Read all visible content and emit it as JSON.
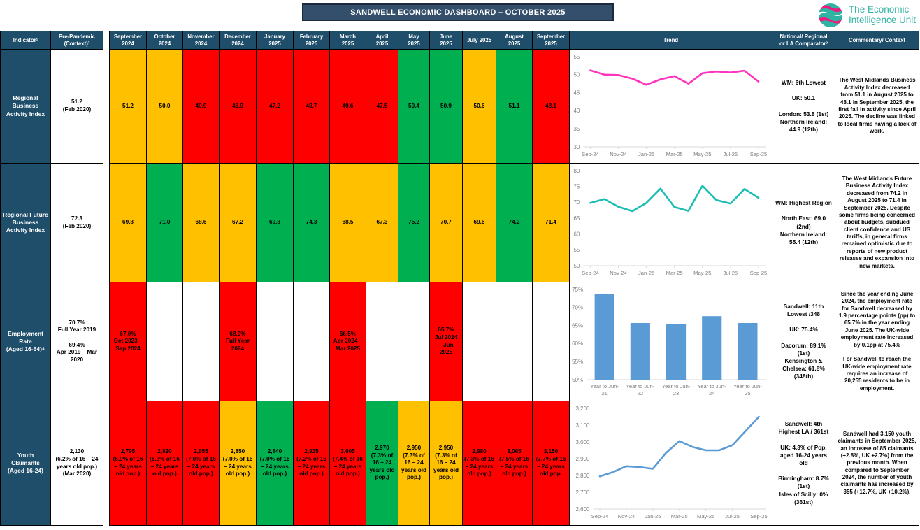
{
  "title": "SANDWELL ECONOMIC DASHBOARD – OCTOBER 2025",
  "logo": {
    "text": "The Economic\nIntelligence Unit"
  },
  "colors": {
    "header_bg": "#1F4E6B",
    "title_bg": "#334F6B",
    "red": "#FF0000",
    "amber": "#FFC000",
    "green": "#00B050",
    "none": "#FFFFFF",
    "line_pink": "#FF33BE",
    "line_teal": "#1CBEB4",
    "line_blue": "#5B9BD5",
    "bar_blue": "#5B9BD5",
    "axis_text": "#7F7F7F",
    "axis_line": "#D9D9D9",
    "logo_teal": "#2FB3A3",
    "logo_pink": "#ED1A7F"
  },
  "columns": {
    "indicator": "Indicator¹",
    "pre_pandemic": "Pre-Pandemic\n(Context)²",
    "months": [
      "September\n2024",
      "October\n2024",
      "November\n2024",
      "December\n2024",
      "January\n2025",
      "February\n2025",
      "March\n2025",
      "April\n2025",
      "May\n2025",
      "June\n2025",
      "July 2025",
      "August\n2025",
      "September\n2025"
    ],
    "trend": "Trend",
    "comparator": "National/ Regional\nor LA Comparator³",
    "commentary": "Commentary/ Context"
  },
  "rows": [
    {
      "indicator": "Regional\nBusiness\nActivity Index",
      "pre_pandemic": "51.2\n(Feb 2020)",
      "values": [
        {
          "text": "51.2",
          "status": "amber"
        },
        {
          "text": "50.0",
          "status": "amber"
        },
        {
          "text": "49.9",
          "status": "red"
        },
        {
          "text": "48.9",
          "status": "red"
        },
        {
          "text": "47.2",
          "status": "red"
        },
        {
          "text": "48.7",
          "status": "red"
        },
        {
          "text": "49.6",
          "status": "red"
        },
        {
          "text": "47.5",
          "status": "red"
        },
        {
          "text": "50.4",
          "status": "green"
        },
        {
          "text": "50.9",
          "status": "green"
        },
        {
          "text": "50.6",
          "status": "amber"
        },
        {
          "text": "51.1",
          "status": "green"
        },
        {
          "text": "48.1",
          "status": "red"
        }
      ],
      "comparator": "WM: 6th Lowest\n\nUK: 50.1\n\nLondon: 53.8 (1st)\nNorthern Ireland: 44.9 (12th)",
      "commentary": "The West Midlands Business Activity Index decreased from 51.1 in August 2025 to 48.1 in September 2025, the first fall in activity since April 2025. The decline was linked to local firms having a lack of work."
    },
    {
      "indicator": "Regional Future\nBusiness\nActivity Index",
      "pre_pandemic": "72.3\n(Feb 2020)",
      "values": [
        {
          "text": "69.8",
          "status": "amber"
        },
        {
          "text": "71.0",
          "status": "green"
        },
        {
          "text": "68.6",
          "status": "amber"
        },
        {
          "text": "67.2",
          "status": "amber"
        },
        {
          "text": "69.8",
          "status": "green"
        },
        {
          "text": "74.3",
          "status": "green"
        },
        {
          "text": "68.5",
          "status": "amber"
        },
        {
          "text": "67.3",
          "status": "amber"
        },
        {
          "text": "75.2",
          "status": "green"
        },
        {
          "text": "70.7",
          "status": "amber"
        },
        {
          "text": "69.6",
          "status": "amber"
        },
        {
          "text": "74.2",
          "status": "green"
        },
        {
          "text": "71.4",
          "status": "amber"
        }
      ],
      "comparator": "WM: Highest Region\n\nNorth East: 69.0 (2nd)\nNorthern Ireland: 55.4 (12th)",
      "commentary": "The West Midlands Future Business Activity Index decreased from 74.2 in August 2025 to 71.4 in September 2025. Despite some firms being concerned about budgets, subdued client confidence and US tariffs, in general firms remained optimistic due to reports of new product releases and expansion into new markets."
    },
    {
      "indicator": "Employment\nRate\n(Aged 16-64)⁴",
      "pre_pandemic": "70.7%\nFull Year 2019\n\n69.4%\nApr 2019 – Mar 2020",
      "values": [
        {
          "text": "67.0%\nOct 2023 –\nSep 2024",
          "status": "red"
        },
        {
          "text": "",
          "status": "none"
        },
        {
          "text": "",
          "status": "none"
        },
        {
          "text": "68.0%\nFull Year\n2024",
          "status": "red"
        },
        {
          "text": "",
          "status": "none"
        },
        {
          "text": "",
          "status": "none"
        },
        {
          "text": "66.5%\nApr 2024 –\nMar 2025",
          "status": "red"
        },
        {
          "text": "",
          "status": "none"
        },
        {
          "text": "",
          "status": "none"
        },
        {
          "text": "65.7%\nJul 2024\n– Jun\n2025",
          "status": "red"
        },
        {
          "text": "",
          "status": "none"
        },
        {
          "text": "",
          "status": "none"
        },
        {
          "text": "",
          "status": "none"
        }
      ],
      "comparator": "Sandwell: 11th\nLowest /348\n\nUK: 75.4%\n\nDacorum: 89.1%\n(1st)\nKensington &\nChelsea: 61.8%\n(348th)",
      "commentary": "Since the year ending June 2024, the employment rate for Sandwell decreased by 1.9 percentage points (pp) to 65.7% in the year ending June 2025. The UK-wide employment rate increased by 0.1pp at 75.4%\n\nFor Sandwell to reach the UK-wide employment rate requires an increase of 20,255 residents to be in employment."
    },
    {
      "indicator": "Youth\nClaimants\n(Aged 16-24)",
      "pre_pandemic": "2,130\n(6.2% of 16 – 24 years old pop.)\n(Mar 2020)",
      "values": [
        {
          "text": "2,795\n(6.9% of 16 – 24 years old pop.)",
          "status": "red"
        },
        {
          "text": "2,820\n(6.9% of 16 – 24 years old pop.)",
          "status": "red"
        },
        {
          "text": "2,855\n(7.0% of 16 – 24 years old pop.)",
          "status": "red"
        },
        {
          "text": "2,850\n(7.0% of 16 – 24 years old pop.)",
          "status": "amber"
        },
        {
          "text": "2,840\n(7.0% of 16 – 24 years old pop.)",
          "status": "green"
        },
        {
          "text": "2,935\n(7.2% of 16 – 24 years old pop.)",
          "status": "red"
        },
        {
          "text": "3,005\n(7.4% of 16 – 24 years old pop.)",
          "status": "red"
        },
        {
          "text": "2,970\n(7.3% of 16 – 24 years old pop.)",
          "status": "green"
        },
        {
          "text": "2,950\n(7.3% of 16 – 24 years old pop.)",
          "status": "amber"
        },
        {
          "text": "2,950\n(7.3% of 16 – 24 years old pop.)",
          "status": "amber"
        },
        {
          "text": "2,980\n(7.3% of 16 – 24 years old pop.)",
          "status": "red"
        },
        {
          "text": "3,065\n(7.5% of 16 – 24 years old pop.)",
          "status": "red"
        },
        {
          "text": "3,150\n(7.7% of 16 – 24 years old pop.",
          "status": "red"
        }
      ],
      "comparator": "Sandwell: 4th\nHighest LA / 361st\n\nUK: 4.3% of Pop.\naged 16-24 years\nold\n\nBirmingham: 8.7%\n(1st)\nIsles of Scilly: 0%\n(361st)",
      "commentary": "Sandwell had 3,150 youth claimants in September 2025, an increase of 85 claimants (+2.8%, UK +2.7%) from the previous month. When compared to September 2024, the number of youth claimants has increased by 355 (+12.7%, UK +10.2%)."
    }
  ],
  "chart_data": [
    {
      "type": "line",
      "title": "Regional Business Activity Index trend",
      "color_key": "line_pink",
      "x": [
        "Sep-24",
        "Oct-24",
        "Nov-24",
        "Dec-24",
        "Jan-25",
        "Feb-25",
        "Mar-25",
        "Apr-25",
        "May-25",
        "Jun-25",
        "Jul-25",
        "Aug-25",
        "Sep-25"
      ],
      "values": [
        51.2,
        50.0,
        49.9,
        48.9,
        47.2,
        48.7,
        49.6,
        47.5,
        50.4,
        50.9,
        50.6,
        51.1,
        48.1
      ],
      "ylim": [
        30,
        55
      ],
      "ystep": 5,
      "y_format": "plain",
      "x_tick_labels": [
        "Sep-24",
        "Nov-24",
        "Jan-25",
        "Mar-25",
        "May-25",
        "Jul-25",
        "Sep-25"
      ],
      "grid": false,
      "legend": false
    },
    {
      "type": "line",
      "title": "Regional Future Business Activity Index trend",
      "color_key": "line_teal",
      "x": [
        "Sep-24",
        "Oct-24",
        "Nov-24",
        "Dec-24",
        "Jan-25",
        "Feb-25",
        "Mar-25",
        "Apr-25",
        "May-25",
        "Jun-25",
        "Jul-25",
        "Aug-25",
        "Sep-25"
      ],
      "values": [
        69.8,
        71.0,
        68.6,
        67.2,
        69.8,
        74.3,
        68.5,
        67.3,
        75.2,
        70.7,
        69.6,
        74.2,
        71.4
      ],
      "ylim": [
        50,
        80
      ],
      "ystep": 5,
      "y_format": "plain",
      "x_tick_labels": [
        "Sep-24",
        "Nov-24",
        "Jan-25",
        "Mar-25",
        "May-25",
        "Jul-25",
        "Sep-25"
      ],
      "grid": false,
      "legend": false
    },
    {
      "type": "bar",
      "title": "Employment Rate trend",
      "color_key": "bar_blue",
      "categories": [
        "Year to Jun-\n21",
        "Year to Jun-\n22",
        "Year to Jun-\n23",
        "Year to Jun-\n24",
        "Year to Jun-\n25"
      ],
      "values": [
        73.8,
        65.7,
        65.4,
        67.6,
        65.7
      ],
      "ylim": [
        50,
        75
      ],
      "ystep": 5,
      "y_format": "percent",
      "grid": false,
      "legend": false
    },
    {
      "type": "line",
      "title": "Youth Claimants trend",
      "color_key": "line_blue",
      "x": [
        "Sep-24",
        "Oct-24",
        "Nov-24",
        "Dec-24",
        "Jan-25",
        "Feb-25",
        "Mar-25",
        "Apr-25",
        "May-25",
        "Jun-25",
        "Jul-25",
        "Aug-25",
        "Sep-25"
      ],
      "values": [
        2795,
        2820,
        2855,
        2850,
        2840,
        2935,
        3005,
        2970,
        2950,
        2950,
        2980,
        3065,
        3150
      ],
      "ylim": [
        2600,
        3200
      ],
      "ystep": 100,
      "y_format": "comma",
      "x_tick_labels": [
        "Sep-24",
        "Nov-24",
        "Jan-25",
        "Mar-25",
        "May-25",
        "Jul-25",
        "Sep-25"
      ],
      "grid": false,
      "legend": false
    }
  ]
}
